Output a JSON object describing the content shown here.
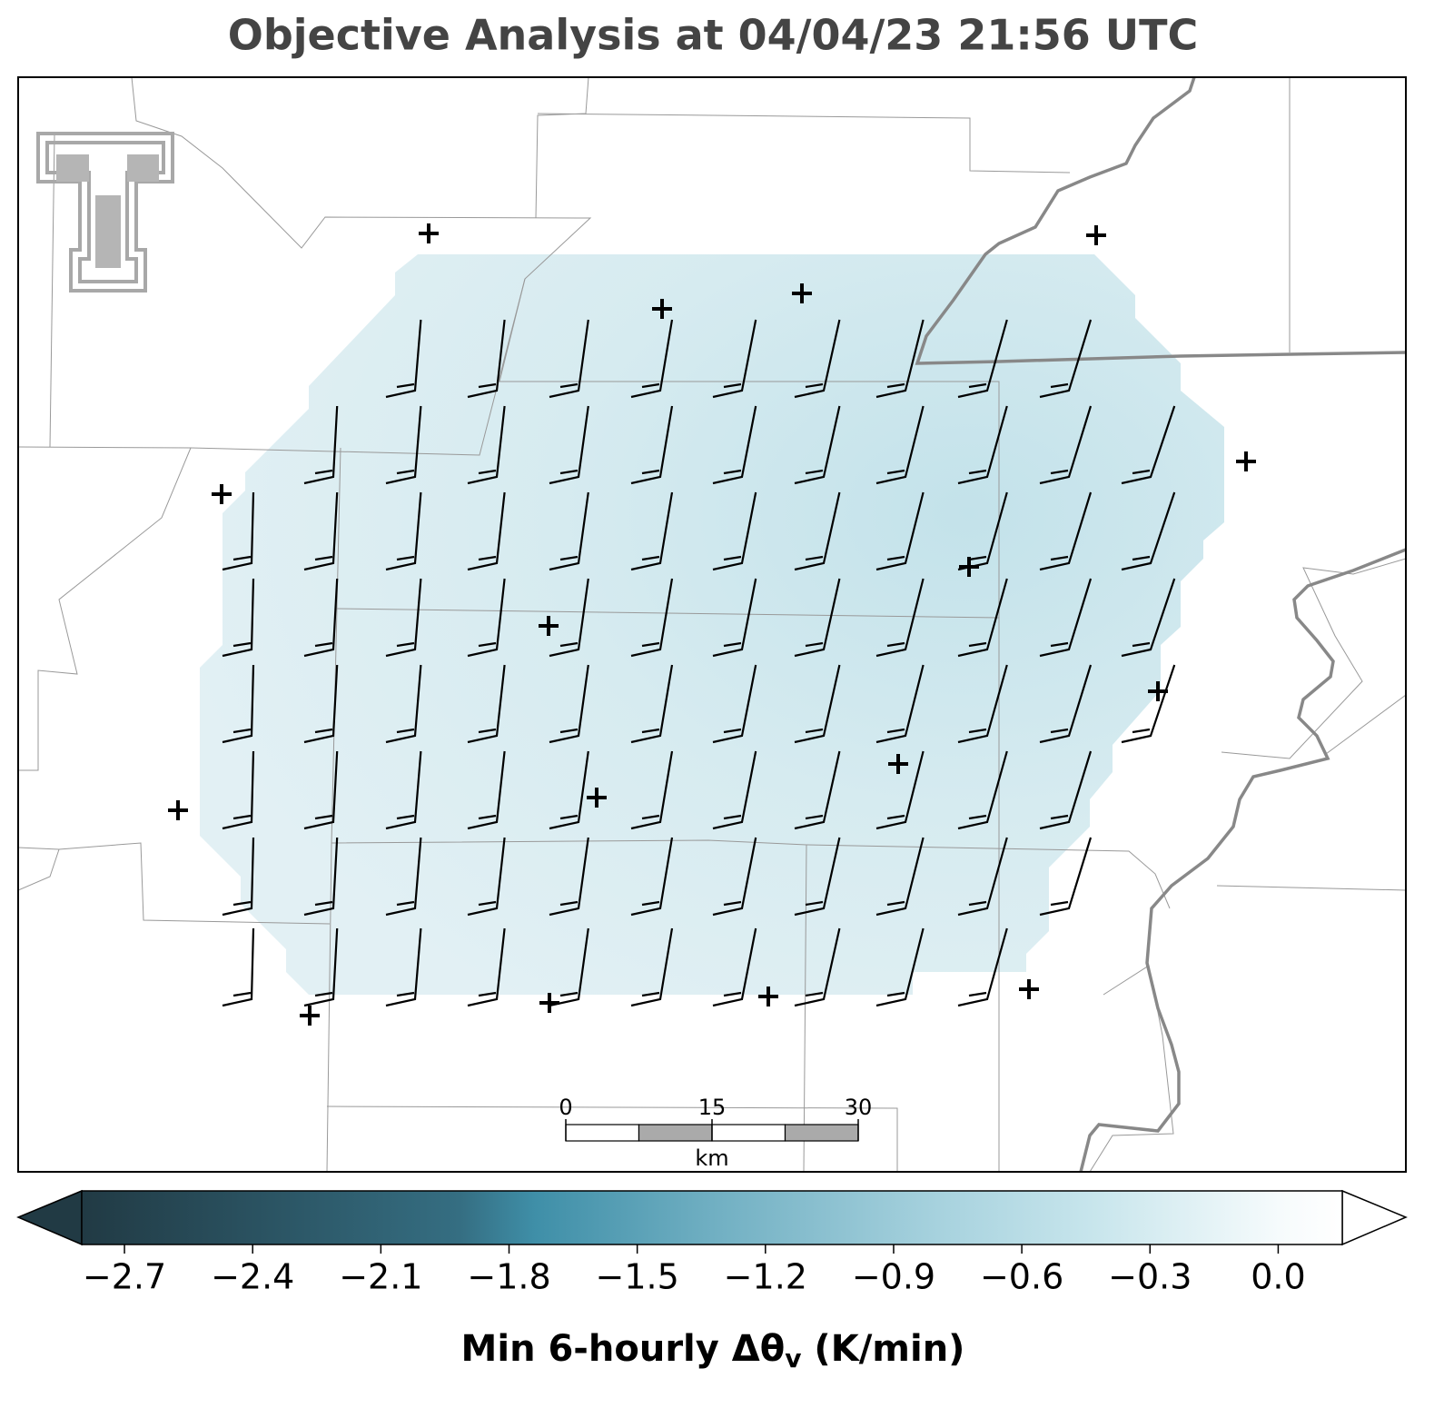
{
  "title": "Objective Analysis at 04/04/23 21:56 UTC",
  "scale_bar": {
    "ticks": [
      0,
      15,
      30
    ],
    "unit": "km"
  },
  "colorbar": {
    "label_main": "Min 6-hourly Δθ",
    "label_sub": "v",
    "label_unit": " (K/min)",
    "clim": [
      -2.8,
      0.15
    ],
    "ticks": [
      {
        "value": -2.7,
        "label": "−2.7"
      },
      {
        "value": -2.4,
        "label": "−2.4"
      },
      {
        "value": -2.1,
        "label": "−2.1"
      },
      {
        "value": -1.8,
        "label": "−1.8"
      },
      {
        "value": -1.5,
        "label": "−1.5"
      },
      {
        "value": -1.2,
        "label": "−1.2"
      },
      {
        "value": -0.9,
        "label": "−0.9"
      },
      {
        "value": -0.6,
        "label": "−0.6"
      },
      {
        "value": -0.3,
        "label": "−0.3"
      },
      {
        "value": 0,
        "label": "0.0"
      }
    ]
  }
}
